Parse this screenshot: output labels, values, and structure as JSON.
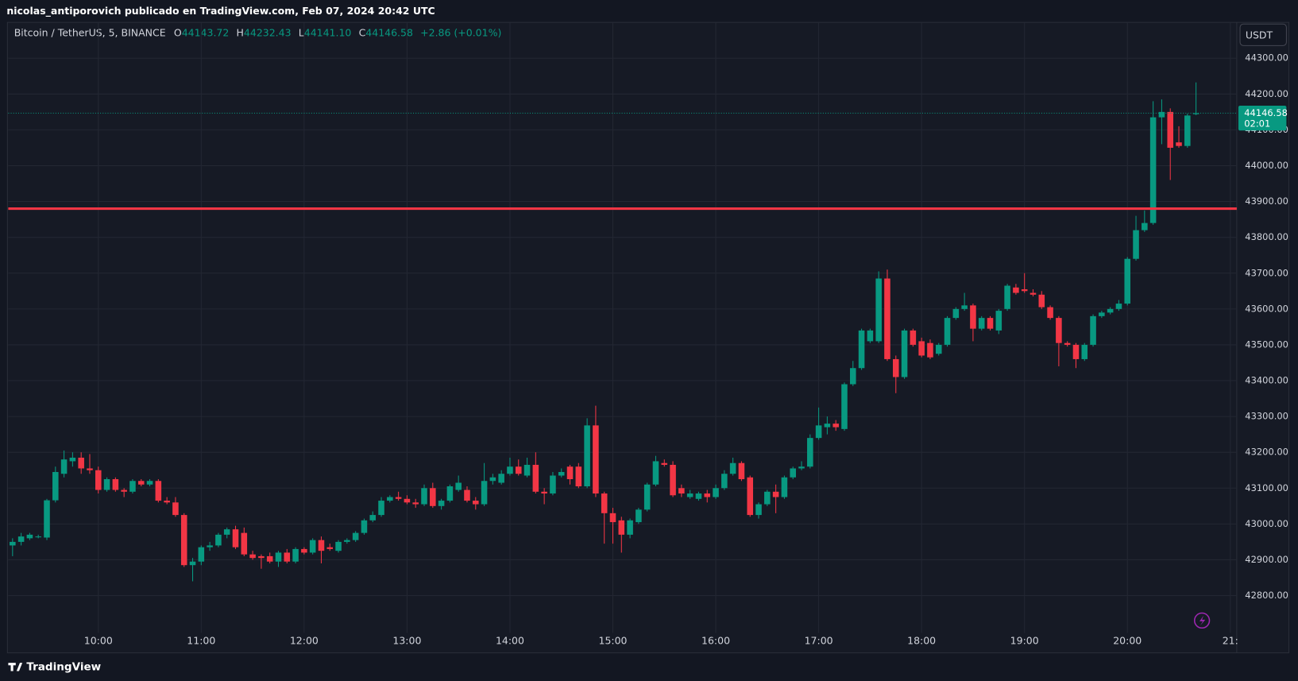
{
  "header": "nicolas_antiporovich publicado en TradingView.com, Feb 07, 2024 20:42 UTC",
  "footer": "TradingView",
  "chart_data": {
    "type": "candlestick",
    "title": "Bitcoin / TetherUS, 5, BINANCE",
    "legend_values": {
      "O": "44143.72",
      "H": "44232.43",
      "L": "44141.10",
      "C": "44146.58",
      "change": "+2.86 (+0.01%)"
    },
    "currency": "USDT",
    "countdown": "02:01",
    "up_color": "#089981",
    "down_color": "#f23645",
    "hline": {
      "value": 43880,
      "color": "#f23645"
    },
    "xlim": [
      -0.5,
      142.75
    ],
    "ylim": [
      42705,
      44400
    ],
    "grid": true,
    "xticks": [
      {
        "value": 10,
        "label": "10:00"
      },
      {
        "value": 22,
        "label": "11:00"
      },
      {
        "value": 34,
        "label": "12:00"
      },
      {
        "value": 46,
        "label": "13:00"
      },
      {
        "value": 58,
        "label": "14:00"
      },
      {
        "value": 70,
        "label": "15:00"
      },
      {
        "value": 82,
        "label": "16:00"
      },
      {
        "value": 94,
        "label": "17:00"
      },
      {
        "value": 106,
        "label": "18:00"
      },
      {
        "value": 118,
        "label": "19:00"
      },
      {
        "value": 130,
        "label": "20:00"
      },
      {
        "value": 142,
        "label": "21:"
      }
    ],
    "yticks": [
      {
        "value": 42800,
        "label": "42800.00"
      },
      {
        "value": 42900,
        "label": "42900.00"
      },
      {
        "value": 43000,
        "label": "43000.00"
      },
      {
        "value": 43100,
        "label": "43100.00"
      },
      {
        "value": 43200,
        "label": "43200.00"
      },
      {
        "value": 43300,
        "label": "43300.00"
      },
      {
        "value": 43400,
        "label": "43400.00"
      },
      {
        "value": 43500,
        "label": "43500.00"
      },
      {
        "value": 43600,
        "label": "43600.00"
      },
      {
        "value": 43700,
        "label": "43700.00"
      },
      {
        "value": 43800,
        "label": "43800.00"
      },
      {
        "value": 43900,
        "label": "43900.00"
      },
      {
        "value": 44000,
        "label": "44000.00"
      },
      {
        "value": 44100,
        "label": "44100.00"
      },
      {
        "value": 44200,
        "label": "44200.00"
      },
      {
        "value": 44300,
        "label": "44300.00"
      }
    ],
    "candles": [
      [
        42940,
        42960,
        42910,
        42950
      ],
      [
        42950,
        42975,
        42940,
        42965
      ],
      [
        42960,
        42975,
        42955,
        42970
      ],
      [
        42965,
        42970,
        42960,
        42965
      ],
      [
        42962,
        43070,
        42955,
        43066
      ],
      [
        43066,
        43160,
        43060,
        43145
      ],
      [
        43140,
        43205,
        43130,
        43180
      ],
      [
        43175,
        43200,
        43160,
        43185
      ],
      [
        43185,
        43200,
        43140,
        43155
      ],
      [
        43155,
        43195,
        43140,
        43150
      ],
      [
        43150,
        43160,
        43085,
        43095
      ],
      [
        43095,
        43130,
        43090,
        43125
      ],
      [
        43125,
        43130,
        43090,
        43095
      ],
      [
        43095,
        43100,
        43075,
        43090
      ],
      [
        43090,
        43125,
        43085,
        43120
      ],
      [
        43120,
        43125,
        43105,
        43110
      ],
      [
        43110,
        43125,
        43105,
        43120
      ],
      [
        43120,
        43125,
        43060,
        43065
      ],
      [
        43065,
        43075,
        43055,
        43060
      ],
      [
        43060,
        43075,
        43020,
        43025
      ],
      [
        43025,
        43030,
        42880,
        42885
      ],
      [
        42885,
        42905,
        42840,
        42895
      ],
      [
        42895,
        42940,
        42885,
        42935
      ],
      [
        42935,
        42950,
        42925,
        42940
      ],
      [
        42940,
        42975,
        42935,
        42970
      ],
      [
        42970,
        42990,
        42960,
        42985
      ],
      [
        42985,
        42995,
        42930,
        42935
      ],
      [
        42975,
        42990,
        42910,
        42915
      ],
      [
        42915,
        42925,
        42900,
        42905
      ],
      [
        42910,
        42915,
        42875,
        42905
      ],
      [
        42910,
        42920,
        42890,
        42895
      ],
      [
        42895,
        42925,
        42880,
        42920
      ],
      [
        42920,
        42930,
        42890,
        42895
      ],
      [
        42895,
        42935,
        42890,
        42930
      ],
      [
        42930,
        42935,
        42915,
        42920
      ],
      [
        42920,
        42960,
        42915,
        42955
      ],
      [
        42955,
        42965,
        42890,
        42925
      ],
      [
        42935,
        42945,
        42925,
        42930
      ],
      [
        42925,
        42955,
        42920,
        42950
      ],
      [
        42950,
        42960,
        42945,
        42955
      ],
      [
        42955,
        42980,
        42950,
        42975
      ],
      [
        42975,
        43015,
        42970,
        43010
      ],
      [
        43010,
        43035,
        43005,
        43025
      ],
      [
        43025,
        43075,
        43020,
        43065
      ],
      [
        43065,
        43080,
        43060,
        43075
      ],
      [
        43075,
        43090,
        43065,
        43070
      ],
      [
        43070,
        43080,
        43055,
        43060
      ],
      [
        43060,
        43070,
        43045,
        43055
      ],
      [
        43055,
        43110,
        43050,
        43100
      ],
      [
        43100,
        43115,
        43045,
        43050
      ],
      [
        43050,
        43070,
        43040,
        43065
      ],
      [
        43065,
        43110,
        43060,
        43105
      ],
      [
        43095,
        43135,
        43090,
        43115
      ],
      [
        43095,
        43105,
        43060,
        43065
      ],
      [
        43065,
        43075,
        43040,
        43055
      ],
      [
        43055,
        43170,
        43050,
        43120
      ],
      [
        43120,
        43140,
        43110,
        43130
      ],
      [
        43115,
        43150,
        43110,
        43140
      ],
      [
        43140,
        43185,
        43135,
        43160
      ],
      [
        43160,
        43180,
        43135,
        43140
      ],
      [
        43135,
        43185,
        43130,
        43165
      ],
      [
        43165,
        43200,
        43085,
        43090
      ],
      [
        43090,
        43100,
        43055,
        43085
      ],
      [
        43085,
        43145,
        43080,
        43135
      ],
      [
        43135,
        43155,
        43130,
        43145
      ],
      [
        43160,
        43165,
        43110,
        43125
      ],
      [
        43160,
        43170,
        43100,
        43105
      ],
      [
        43105,
        43295,
        43100,
        43275
      ],
      [
        43275,
        43330,
        43075,
        43085
      ],
      [
        43085,
        43090,
        42945,
        43030
      ],
      [
        43030,
        43045,
        42945,
        43005
      ],
      [
        43010,
        43020,
        42920,
        42970
      ],
      [
        42970,
        43015,
        42960,
        43010
      ],
      [
        43005,
        43045,
        43000,
        43040
      ],
      [
        43040,
        43115,
        43035,
        43110
      ],
      [
        43110,
        43190,
        43105,
        43175
      ],
      [
        43170,
        43180,
        43160,
        43165
      ],
      [
        43165,
        43175,
        43075,
        43080
      ],
      [
        43100,
        43110,
        43075,
        43085
      ],
      [
        43075,
        43095,
        43070,
        43085
      ],
      [
        43070,
        43090,
        43065,
        43085
      ],
      [
        43085,
        43095,
        43060,
        43075
      ],
      [
        43075,
        43110,
        43070,
        43100
      ],
      [
        43100,
        43150,
        43095,
        43140
      ],
      [
        43140,
        43185,
        43135,
        43170
      ],
      [
        43170,
        43175,
        43120,
        43125
      ],
      [
        43130,
        43135,
        43020,
        43025
      ],
      [
        43025,
        43060,
        43015,
        43055
      ],
      [
        43055,
        43095,
        43050,
        43090
      ],
      [
        43090,
        43110,
        43030,
        43075
      ],
      [
        43075,
        43135,
        43070,
        43130
      ],
      [
        43130,
        43160,
        43125,
        43155
      ],
      [
        43155,
        43175,
        43150,
        43160
      ],
      [
        43160,
        43250,
        43155,
        43240
      ],
      [
        43240,
        43325,
        43235,
        43275
      ],
      [
        43270,
        43300,
        43250,
        43280
      ],
      [
        43280,
        43290,
        43260,
        43270
      ],
      [
        43265,
        43395,
        43260,
        43390
      ],
      [
        43390,
        43455,
        43385,
        43435
      ],
      [
        43435,
        43545,
        43430,
        43540
      ],
      [
        43510,
        43545,
        43505,
        43540
      ],
      [
        43510,
        43705,
        43505,
        43685
      ],
      [
        43685,
        43710,
        43455,
        43460
      ],
      [
        43460,
        43470,
        43365,
        43410
      ],
      [
        43410,
        43545,
        43405,
        43540
      ],
      [
        43540,
        43545,
        43495,
        43500
      ],
      [
        43510,
        43520,
        43465,
        43470
      ],
      [
        43505,
        43515,
        43460,
        43465
      ],
      [
        43475,
        43505,
        43470,
        43500
      ],
      [
        43500,
        43580,
        43495,
        43575
      ],
      [
        43575,
        43605,
        43570,
        43600
      ],
      [
        43600,
        43645,
        43595,
        43610
      ],
      [
        43610,
        43615,
        43510,
        43545
      ],
      [
        43545,
        43580,
        43540,
        43575
      ],
      [
        43575,
        43580,
        43540,
        43545
      ],
      [
        43540,
        43600,
        43530,
        43595
      ],
      [
        43600,
        43670,
        43595,
        43665
      ],
      [
        43660,
        43670,
        43640,
        43645
      ],
      [
        43655,
        43700,
        43645,
        43650
      ],
      [
        43645,
        43655,
        43635,
        43640
      ],
      [
        43640,
        43650,
        43600,
        43605
      ],
      [
        43605,
        43610,
        43570,
        43575
      ],
      [
        43575,
        43580,
        43440,
        43505
      ],
      [
        43505,
        43510,
        43495,
        43500
      ],
      [
        43500,
        43505,
        43435,
        43460
      ],
      [
        43460,
        43505,
        43455,
        43500
      ],
      [
        43500,
        43585,
        43495,
        43580
      ],
      [
        43580,
        43595,
        43575,
        43590
      ],
      [
        43590,
        43605,
        43585,
        43600
      ],
      [
        43600,
        43625,
        43595,
        43615
      ],
      [
        43615,
        43745,
        43610,
        43740
      ],
      [
        43740,
        43860,
        43735,
        43820
      ],
      [
        43820,
        43875,
        43815,
        43840
      ],
      [
        43840,
        44180,
        43835,
        44135
      ],
      [
        44135,
        44185,
        44060,
        44150
      ],
      [
        44150,
        44160,
        43960,
        44050
      ],
      [
        44065,
        44110,
        44050,
        44055
      ],
      [
        44055,
        44145,
        44050,
        44140
      ],
      [
        44143.72,
        44232.43,
        44141.1,
        44146.58
      ]
    ]
  }
}
